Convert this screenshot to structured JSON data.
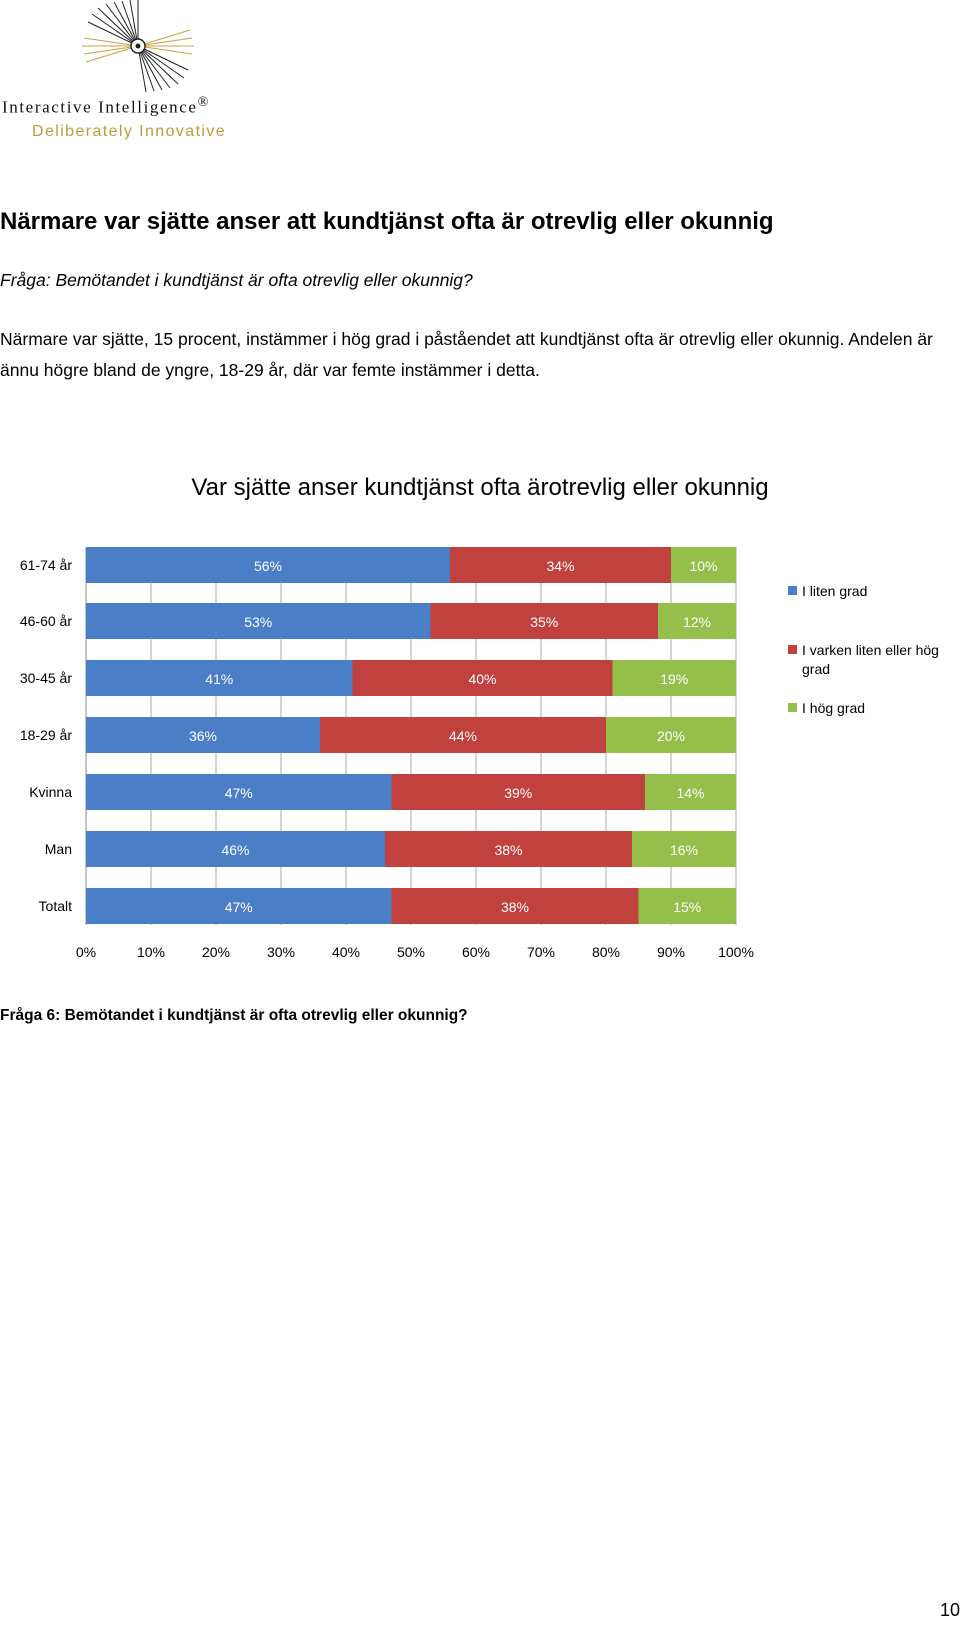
{
  "logo": {
    "name": "Interactive Intelligence",
    "trademark": "®",
    "tagline": "Deliberately Innovative"
  },
  "heading": "Närmare var sjätte anser att kundtjänst ofta är otrevlig eller okunnig",
  "question": "Fråga: Bemötandet i kundtjänst är ofta otrevlig eller okunnig?",
  "body": "Närmare var sjätte, 15 procent, instämmer i hög grad i påståendet att kundtjänst ofta är otrevlig eller okunnig. Andelen är ännu högre bland de yngre, 18-29 år, där var femte instämmer i detta.",
  "chart_data": {
    "type": "bar",
    "orientation": "horizontal",
    "stacked": "100%",
    "title": "Var sjätte anser kundtjänst ofta ärotrevlig eller okunnig",
    "categories": [
      "61-74 år",
      "46-60 år",
      "30-45 år",
      "18-29 år",
      "Kvinna",
      "Man",
      "Totalt"
    ],
    "series": [
      {
        "name": "I liten grad",
        "color": "#4a7fc8",
        "values": [
          56,
          53,
          41,
          36,
          47,
          46,
          47
        ]
      },
      {
        "name": "I varken liten eller hög grad",
        "color": "#c0413d",
        "values": [
          34,
          35,
          40,
          44,
          39,
          38,
          38
        ]
      },
      {
        "name": "I hög grad",
        "color": "#94bf4a",
        "values": [
          10,
          12,
          19,
          20,
          14,
          16,
          15
        ]
      }
    ],
    "xlim": [
      0,
      100
    ],
    "x_ticks": [
      "0%",
      "10%",
      "20%",
      "30%",
      "40%",
      "50%",
      "60%",
      "70%",
      "80%",
      "90%",
      "100%"
    ],
    "value_suffix": "%",
    "grid": true,
    "legend": "right"
  },
  "footnote": "Fråga 6: Bemötandet i kundtjänst är ofta otrevlig eller okunnig?",
  "page_number": "10"
}
